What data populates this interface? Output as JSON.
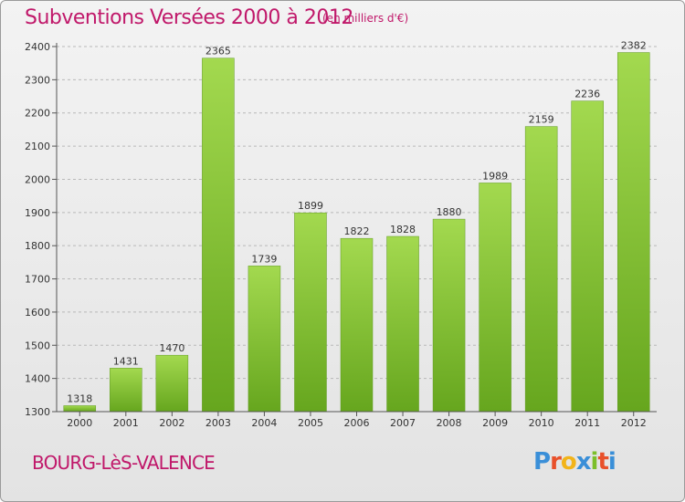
{
  "header": {
    "title": "Subventions Versées 2000 à 2012",
    "subtitle": "(en milliers d'€)"
  },
  "footer": {
    "commune": "BOURG-LèS-VALENCE",
    "logo": [
      "P",
      "r",
      "o",
      "x",
      "i",
      "t",
      "i"
    ],
    "logo_colors": [
      "#3a8fd8",
      "#e8502a",
      "#f2b41a",
      "#3a8fd8",
      "#7cbf2a",
      "#e8502a",
      "#3a8fd8"
    ]
  },
  "chart_data": {
    "type": "bar",
    "title": "Subventions Versées 2000 à 2012",
    "subtitle": "(en milliers d'€)",
    "categories": [
      "2000",
      "2001",
      "2002",
      "2003",
      "2004",
      "2005",
      "2006",
      "2007",
      "2008",
      "2009",
      "2010",
      "2011",
      "2012"
    ],
    "values": [
      1318,
      1431,
      1470,
      2365,
      1739,
      1899,
      1822,
      1828,
      1880,
      1989,
      2159,
      2236,
      2382
    ],
    "ylim": [
      1300,
      2400
    ],
    "yticks": [
      1300,
      1400,
      1500,
      1600,
      1700,
      1800,
      1900,
      2000,
      2100,
      2200,
      2300,
      2400
    ],
    "grid": true,
    "legend": "none",
    "bar_color": "#7cbc32",
    "bar_color_light": "#a3d94f"
  }
}
